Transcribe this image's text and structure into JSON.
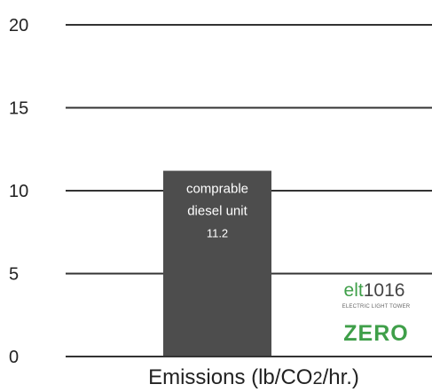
{
  "chart_data": {
    "type": "bar",
    "categories": [
      "comprable diesel unit",
      "elt1016"
    ],
    "values": [
      11.2,
      0
    ],
    "ylim": [
      0,
      20
    ],
    "yticks": [
      0,
      5,
      10,
      15,
      20
    ],
    "xlabel": "Emissions (lb/CO2/hr.)",
    "grid": true,
    "bar_color": "#4d4d4d",
    "bar_labels": [
      {
        "lines": [
          "comprable",
          "diesel unit"
        ],
        "value": "11.2"
      }
    ],
    "annotation": {
      "brand_prefix": "elt",
      "brand_model": "1016",
      "brand_subtitle": "ELECTRIC LIGHT TOWER",
      "value_text": "ZERO",
      "brand_accent_color": "#3f9f49",
      "brand_text_color": "#444444"
    }
  }
}
